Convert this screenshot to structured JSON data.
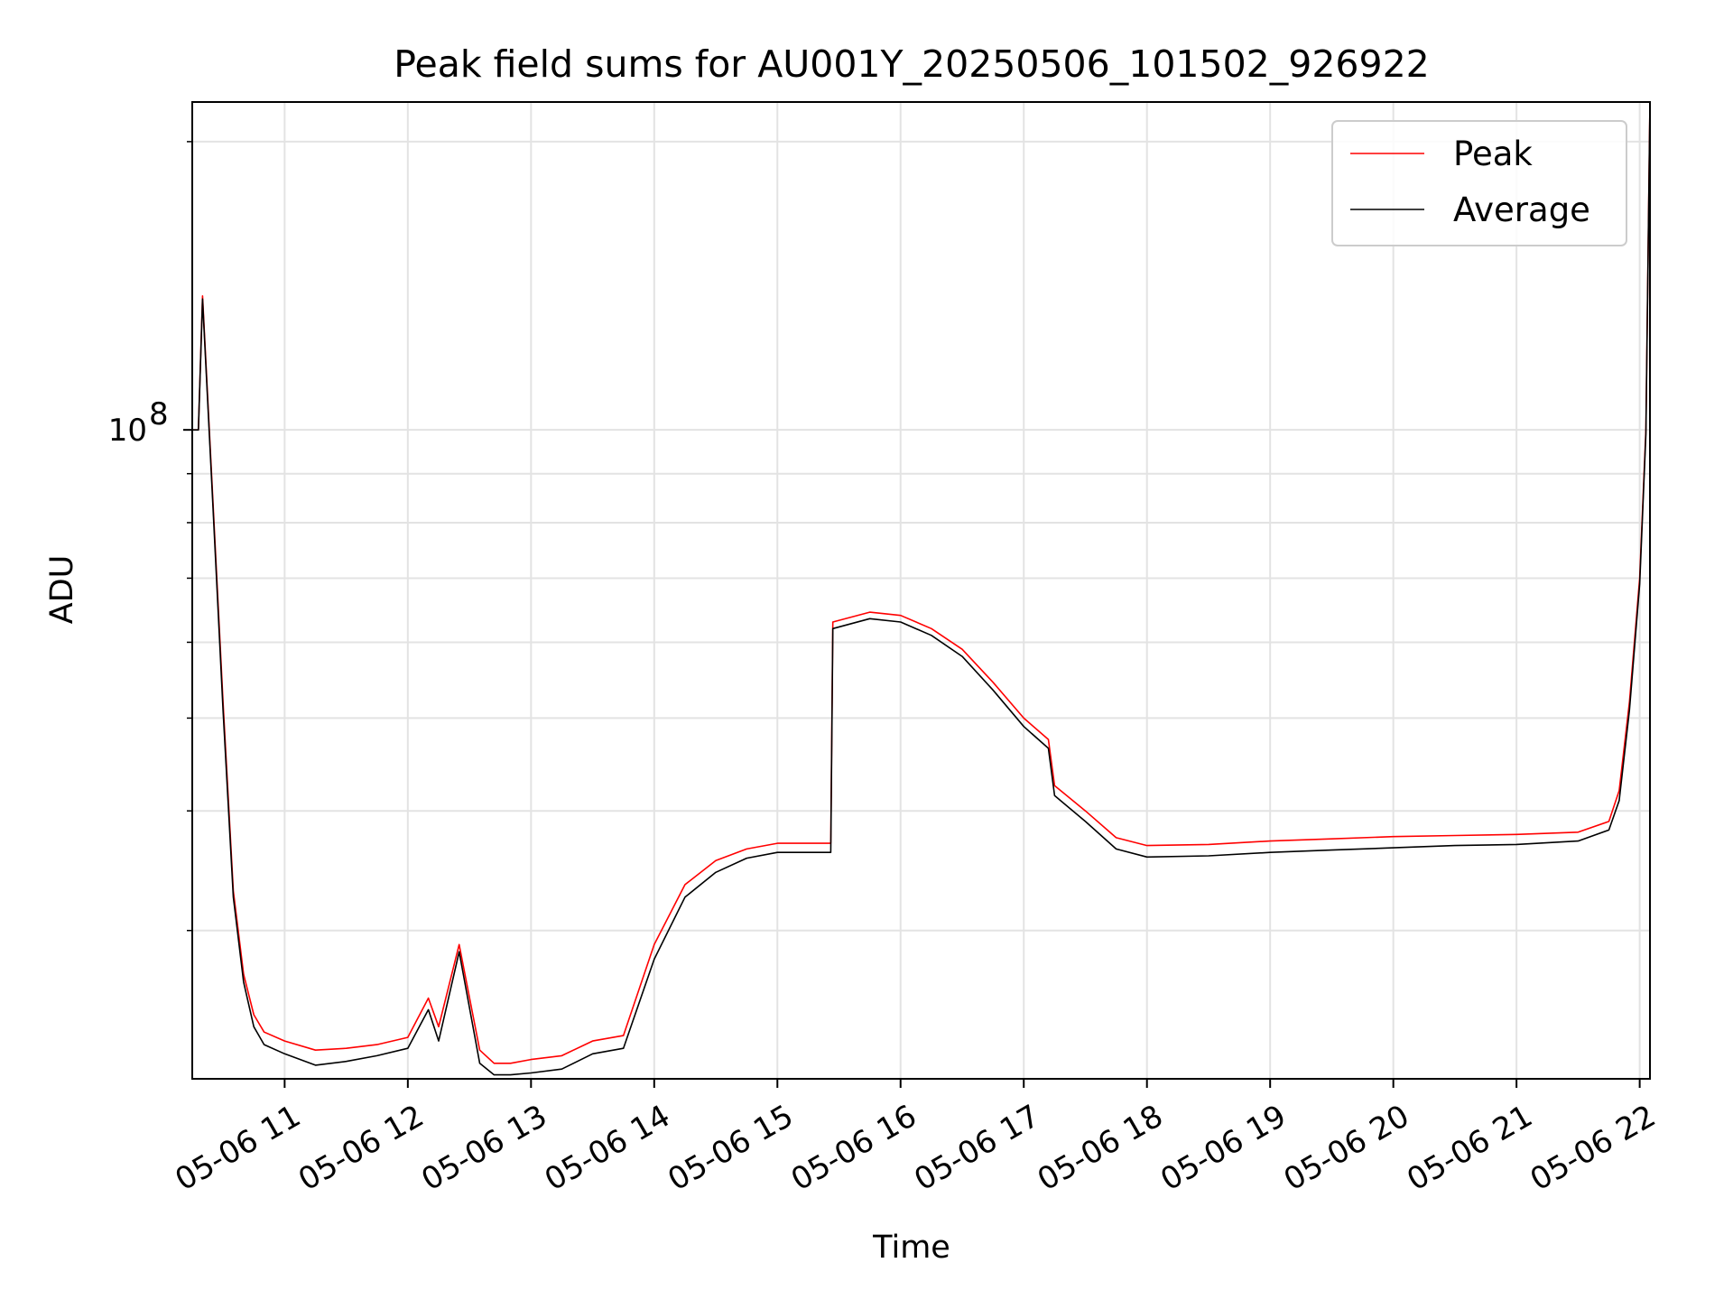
{
  "chart_data": {
    "type": "line",
    "title": "Peak field sums for AU001Y_20250506_101502_926922",
    "xlabel": "Time",
    "ylabel": "ADU",
    "yscale": "log",
    "grid": true,
    "legend_position": "top-right",
    "xlim": [
      "2025-05-06 10:15",
      "2025-05-06 22:05"
    ],
    "ylim": [
      21000000,
      220000000
    ],
    "x_tick_labels": [
      "05-06 11",
      "05-06 12",
      "05-06 13",
      "05-06 14",
      "05-06 15",
      "05-06 16",
      "05-06 17",
      "05-06 18",
      "05-06 19",
      "05-06 20",
      "05-06 21",
      "05-06 22"
    ],
    "y_tick_labels": [
      {
        "base": "10",
        "exp": "8",
        "value": 100000000
      }
    ],
    "y_minor_ticks": [
      30000000,
      40000000,
      50000000,
      60000000,
      70000000,
      80000000,
      90000000,
      200000000
    ],
    "x": [
      "2025-05-06 10:15",
      "2025-05-06 10:18",
      "2025-05-06 10:20",
      "2025-05-06 10:25",
      "2025-05-06 10:30",
      "2025-05-06 10:35",
      "2025-05-06 10:40",
      "2025-05-06 10:45",
      "2025-05-06 10:50",
      "2025-05-06 11:00",
      "2025-05-06 11:15",
      "2025-05-06 11:30",
      "2025-05-06 11:45",
      "2025-05-06 12:00",
      "2025-05-06 12:10",
      "2025-05-06 12:15",
      "2025-05-06 12:25",
      "2025-05-06 12:35",
      "2025-05-06 12:42",
      "2025-05-06 12:50",
      "2025-05-06 13:00",
      "2025-05-06 13:15",
      "2025-05-06 13:30",
      "2025-05-06 13:45",
      "2025-05-06 14:00",
      "2025-05-06 14:15",
      "2025-05-06 14:30",
      "2025-05-06 14:45",
      "2025-05-06 15:00",
      "2025-05-06 15:15",
      "2025-05-06 15:26",
      "2025-05-06 15:27",
      "2025-05-06 15:45",
      "2025-05-06 16:00",
      "2025-05-06 16:15",
      "2025-05-06 16:30",
      "2025-05-06 16:45",
      "2025-05-06 17:00",
      "2025-05-06 17:12",
      "2025-05-06 17:15",
      "2025-05-06 17:30",
      "2025-05-06 17:45",
      "2025-05-06 18:00",
      "2025-05-06 18:30",
      "2025-05-06 19:00",
      "2025-05-06 19:30",
      "2025-05-06 20:00",
      "2025-05-06 20:30",
      "2025-05-06 21:00",
      "2025-05-06 21:30",
      "2025-05-06 21:45",
      "2025-05-06 21:50",
      "2025-05-06 21:55",
      "2025-05-06 22:00",
      "2025-05-06 22:03",
      "2025-05-06 22:05"
    ],
    "series": [
      {
        "name": "Peak",
        "color": "#ff0000",
        "values": [
          100000000,
          100000000,
          138000000,
          85000000,
          52000000,
          33000000,
          27000000,
          24500000,
          23500000,
          23000000,
          22500000,
          22600000,
          22800000,
          23200000,
          25500000,
          23800000,
          29000000,
          22500000,
          21800000,
          21800000,
          22000000,
          22200000,
          23000000,
          23300000,
          29000000,
          33500000,
          35500000,
          36500000,
          37000000,
          37000000,
          37000000,
          63000000,
          64500000,
          64000000,
          62000000,
          59000000,
          54500000,
          50000000,
          47500000,
          42500000,
          40000000,
          37500000,
          36800000,
          36900000,
          37200000,
          37400000,
          37600000,
          37700000,
          37800000,
          38000000,
          39000000,
          42000000,
          52000000,
          70000000,
          100000000,
          220000000
        ]
      },
      {
        "name": "Average",
        "color": "#000000",
        "values": [
          100000000,
          100000000,
          137000000,
          84000000,
          51000000,
          32500000,
          26500000,
          23800000,
          22800000,
          22300000,
          21700000,
          21900000,
          22200000,
          22600000,
          24800000,
          23000000,
          28500000,
          21800000,
          21200000,
          21200000,
          21300000,
          21500000,
          22300000,
          22600000,
          28000000,
          32500000,
          34500000,
          35700000,
          36200000,
          36200000,
          36200000,
          62000000,
          63500000,
          63000000,
          61000000,
          58000000,
          53500000,
          49000000,
          46500000,
          41500000,
          39000000,
          36500000,
          35800000,
          35900000,
          36200000,
          36400000,
          36600000,
          36800000,
          36900000,
          37200000,
          38200000,
          41000000,
          51000000,
          69000000,
          99000000,
          220000000
        ]
      }
    ]
  }
}
